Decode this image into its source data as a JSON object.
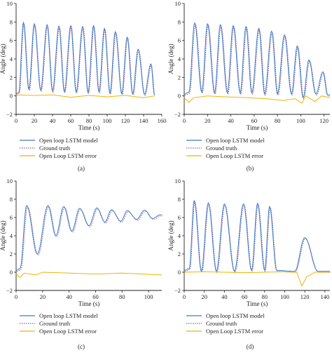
{
  "colors": {
    "model": "#3d7bbf",
    "truth": "#8a64b0",
    "error": "#f0b400",
    "axis": "#231f20"
  },
  "legend": {
    "model": "Open loop LSTM model",
    "truth": "Ground truth",
    "error": "Open Loop LSTM error"
  },
  "chart_data": [
    {
      "panel_label": "(a)",
      "type": "line",
      "xlabel": "Time (s)",
      "ylabel": "Angle (deg)",
      "xlim": [
        0,
        160
      ],
      "ylim": [
        -2,
        10
      ],
      "xticks": [
        "0",
        "20",
        "40",
        "60",
        "80",
        "100",
        "120",
        "140",
        "160"
      ],
      "yticks": [
        "−2",
        "0",
        "2",
        "4",
        "6",
        "8",
        "10"
      ],
      "peaks": [
        [
          8,
          7.95
        ],
        [
          20,
          7.8
        ],
        [
          34,
          7.7
        ],
        [
          47,
          7.55
        ],
        [
          60,
          7.6
        ],
        [
          73,
          7.5
        ],
        [
          85,
          7.6
        ],
        [
          97,
          7.3
        ],
        [
          109,
          6.95
        ],
        [
          122,
          6.35
        ],
        [
          134,
          5.05
        ],
        [
          148,
          3.45
        ]
      ],
      "troughs": [
        [
          14,
          0.7
        ],
        [
          27,
          0.6
        ],
        [
          40,
          0.5
        ],
        [
          53,
          0.45
        ],
        [
          66,
          0.4
        ],
        [
          79,
          0.35
        ],
        [
          91,
          0.45
        ],
        [
          103,
          0.3
        ],
        [
          116,
          0.25
        ],
        [
          128,
          0.2
        ],
        [
          141,
          0.15
        ],
        [
          152,
          0.1
        ]
      ],
      "x_end": 152,
      "series": [
        {
          "name": "Open loop LSTM model",
          "role": "model"
        },
        {
          "name": "Ground truth",
          "role": "truth"
        },
        {
          "name": "Open Loop LSTM error",
          "role": "error",
          "values": [
            [
              0,
              0.1
            ],
            [
              20,
              0.05
            ],
            [
              40,
              0.1
            ],
            [
              60,
              -0.15
            ],
            [
              80,
              0.05
            ],
            [
              100,
              -0.1
            ],
            [
              120,
              0.05
            ],
            [
              140,
              -0.2
            ],
            [
              152,
              0
            ]
          ]
        }
      ]
    },
    {
      "panel_label": "(b)",
      "type": "line",
      "xlabel": "Time (s)",
      "ylabel": "Angle (deg)",
      "xlim": [
        0,
        125
      ],
      "ylim": [
        -2,
        10
      ],
      "xticks": [
        "0",
        "20",
        "40",
        "60",
        "80",
        "100",
        "120"
      ],
      "yticks": [
        "−2",
        "0",
        "2",
        "4",
        "6",
        "8",
        "10"
      ],
      "peaks": [
        [
          9,
          7.9
        ],
        [
          20,
          7.8
        ],
        [
          31,
          7.7
        ],
        [
          42,
          7.6
        ],
        [
          53,
          7.5
        ],
        [
          64,
          7.3
        ],
        [
          75,
          7.0
        ],
        [
          86,
          6.6
        ],
        [
          97,
          5.4
        ],
        [
          107,
          3.9
        ],
        [
          119,
          2.6
        ]
      ],
      "troughs": [
        [
          15,
          0.4
        ],
        [
          26,
          0.3
        ],
        [
          37,
          0.3
        ],
        [
          48,
          0.3
        ],
        [
          58,
          0.3
        ],
        [
          69,
          0.2
        ],
        [
          80,
          0.2
        ],
        [
          92,
          0.2
        ],
        [
          102,
          -0.2
        ],
        [
          113,
          0.2
        ],
        [
          123,
          0.1
        ]
      ],
      "x_end": 125,
      "series": [
        {
          "name": "Open loop LSTM model",
          "role": "model"
        },
        {
          "name": "Ground truth",
          "role": "truth"
        },
        {
          "name": "Open Loop LSTM error",
          "role": "error",
          "values": [
            [
              0,
              -0.2
            ],
            [
              4,
              -0.7
            ],
            [
              8,
              -0.2
            ],
            [
              20,
              0
            ],
            [
              35,
              -0.1
            ],
            [
              55,
              -0.2
            ],
            [
              70,
              -0.3
            ],
            [
              85,
              -0.5
            ],
            [
              95,
              -0.3
            ],
            [
              101,
              -0.8
            ],
            [
              104,
              0
            ],
            [
              112,
              -0.6
            ],
            [
              118,
              0
            ],
            [
              125,
              -0.2
            ]
          ]
        }
      ]
    },
    {
      "panel_label": "(c)",
      "type": "line",
      "xlabel": "Time (s)",
      "ylabel": "Angle (deg)",
      "xlim": [
        0,
        110
      ],
      "ylim": [
        -2,
        10
      ],
      "xticks": [
        "0",
        "20",
        "40",
        "60",
        "80",
        "100"
      ],
      "yticks": [
        "−2",
        "0",
        "2",
        "4",
        "6",
        "8",
        "10"
      ],
      "peaks": [
        [
          8,
          7.3
        ],
        [
          24,
          7.3
        ],
        [
          36,
          7.2
        ],
        [
          48,
          7.0
        ],
        [
          61,
          7.05
        ],
        [
          72,
          6.85
        ],
        [
          84,
          6.75
        ],
        [
          97,
          6.8
        ],
        [
          109,
          6.3
        ]
      ],
      "troughs": [
        [
          16,
          2.0
        ],
        [
          30,
          4.0
        ],
        [
          42,
          4.5
        ],
        [
          55,
          5.1
        ],
        [
          67,
          5.5
        ],
        [
          79,
          5.6
        ],
        [
          91,
          5.8
        ],
        [
          103,
          5.9
        ]
      ],
      "x_end": 110,
      "series": [
        {
          "name": "Open loop LSTM model",
          "role": "model"
        },
        {
          "name": "Ground truth",
          "role": "truth"
        },
        {
          "name": "Open Loop LSTM error",
          "role": "error",
          "values": [
            [
              0,
              -0.2
            ],
            [
              3,
              -0.6
            ],
            [
              6,
              -0.1
            ],
            [
              15,
              -0.3
            ],
            [
              20,
              0
            ],
            [
              40,
              -0.1
            ],
            [
              60,
              -0.2
            ],
            [
              80,
              -0.1
            ],
            [
              110,
              -0.3
            ]
          ]
        }
      ]
    },
    {
      "panel_label": "(d)",
      "type": "line",
      "xlabel": "Time (s)",
      "ylabel": "Angle (deg)",
      "xlim": [
        0,
        145
      ],
      "ylim": [
        -2,
        10
      ],
      "xticks": [
        "0",
        "20",
        "40",
        "60",
        "80",
        "100",
        "120",
        "140"
      ],
      "yticks": [
        "−2",
        "0",
        "2",
        "4",
        "6",
        "8",
        "10"
      ],
      "peaks": [
        [
          10,
          7.85
        ],
        [
          24,
          7.6
        ],
        [
          40,
          7.5
        ],
        [
          59,
          7.5
        ],
        [
          73,
          7.55
        ],
        [
          85,
          7.2
        ],
        [
          120,
          3.8
        ]
      ],
      "troughs": [
        [
          17,
          0.1
        ],
        [
          32,
          0.1
        ],
        [
          50,
          0.1
        ],
        [
          67,
          0.2
        ],
        [
          80,
          0.2
        ],
        [
          92,
          0.2
        ],
        [
          110,
          0.1
        ],
        [
          133,
          0.1
        ],
        [
          142,
          0.1
        ]
      ],
      "x_end": 145,
      "series": [
        {
          "name": "Open loop LSTM model",
          "role": "model"
        },
        {
          "name": "Ground truth",
          "role": "truth"
        },
        {
          "name": "Open Loop LSTM error",
          "role": "error",
          "values": [
            [
              0,
              0
            ],
            [
              20,
              0.05
            ],
            [
              40,
              0
            ],
            [
              60,
              -0.05
            ],
            [
              80,
              0
            ],
            [
              100,
              0.05
            ],
            [
              112,
              0
            ],
            [
              117,
              -1.5
            ],
            [
              122,
              -0.5
            ],
            [
              130,
              0
            ],
            [
              145,
              0
            ]
          ]
        }
      ]
    }
  ]
}
